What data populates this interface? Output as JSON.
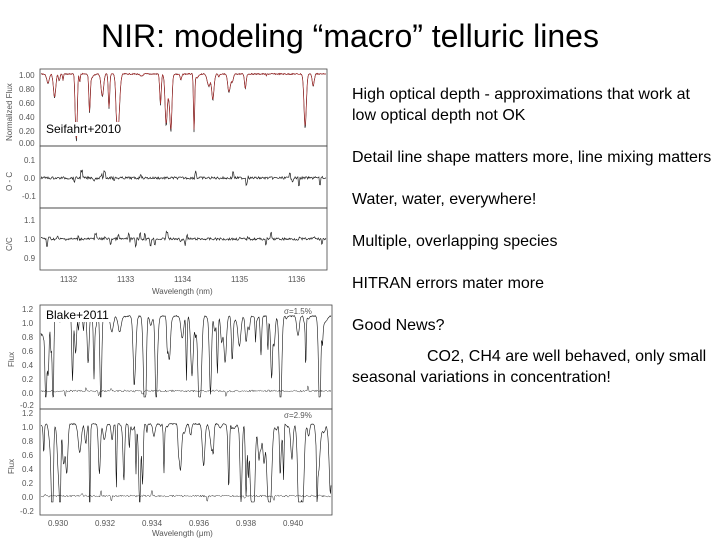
{
  "slide": {
    "title": "NIR: modeling “macro” telluric lines"
  },
  "figure_top": {
    "citation": "Seifahrt+2010",
    "panel1_ylabel": "Normalized Flux",
    "panel1_ticks": [
      "1.00",
      "0.80",
      "0.60",
      "0.40",
      "0.20",
      "0.00"
    ],
    "panel2_ylabel": "O - C",
    "panel2_ticks": [
      "0.1",
      "0.0",
      "-0.1"
    ],
    "panel3_ylabel": "C/C",
    "panel3_ticks": [
      "1.1",
      "1.0",
      "0.9"
    ],
    "x_ticks": [
      "1132",
      "1133",
      "1134",
      "1135",
      "1136"
    ],
    "xlabel": "Wavelength (nm)"
  },
  "figure_bottom": {
    "citation": "Blake+2011",
    "sigma1": "σ=1.5%",
    "sigma2": "σ=2.9%",
    "ylabel": "Flux",
    "y_ticks": [
      "1.2",
      "1.0",
      "0.8",
      "0.6",
      "0.4",
      "0.2",
      "0.0",
      "-0.2"
    ],
    "x_ticks": [
      "0.930",
      "0.932",
      "0.934",
      "0.936",
      "0.938",
      "0.940"
    ],
    "xlabel": "Wavelength (μm)"
  },
  "bullets": [
    "High optical depth - approximations that work at low optical depth not OK",
    "Detail line shape matters more, line mixing matters",
    "Water, water, everywhere!",
    "Multiple, overlapping species",
    "HITRAN errors mater more",
    "Good News?",
    "CO2, CH4 are well behaved, only small seasonal variations in concentration!"
  ]
}
